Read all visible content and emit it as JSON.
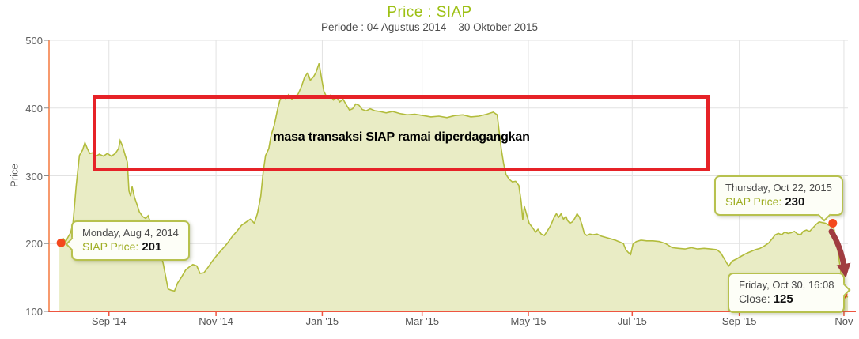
{
  "page": {
    "title": "Price : SIAP",
    "subtitle": "Periode : 04 Agustus 2014 – 30 Oktober 2015"
  },
  "colors": {
    "title": "#9dc014",
    "subtitle": "#4d4d4d",
    "axis_text": "#606060",
    "grid": "#e2e2e2",
    "y_axis_line": "#f79a6e",
    "x_axis_line": "#ee5540",
    "y_tick": "#8a8a8a",
    "series_line": "#b2bc3c",
    "series_fill": "#e9ecc5",
    "marker": "#f4481d",
    "annotation_box": "#e62227",
    "arrow": "#a03c40",
    "tooltip_border": "#b7c14e",
    "tooltip_bg": "#fdfef7",
    "tooltip_label_olive": "#9fae24"
  },
  "annotation": {
    "text": "masa transaksi SIAP ramai diperdagangkan"
  },
  "tooltips": {
    "aug4": {
      "date": "Monday, Aug 4, 2014",
      "label": "SIAP Price:",
      "value": "201"
    },
    "oct22": {
      "date": "Thursday, Oct 22, 2015",
      "label": "SIAP Price:",
      "value": "230"
    },
    "oct30": {
      "date": "Friday, Oct 30, 16:08",
      "label": "Close:",
      "value": "125"
    }
  },
  "chart_data": {
    "type": "area",
    "title": "Price : SIAP",
    "subtitle": "Periode : 04 Agustus 2014 – 30 Oktober 2015",
    "ylabel": "Price",
    "xlabel": "",
    "ylim": [
      100,
      500
    ],
    "y_ticks": [
      100,
      200,
      300,
      400,
      500
    ],
    "grid": true,
    "legend": "none",
    "x_range": [
      "2014-08-04",
      "2015-10-30"
    ],
    "x_ticks": [
      {
        "label": "Sep '14",
        "f": 0.075
      },
      {
        "label": "Nov '14",
        "f": 0.209
      },
      {
        "label": "Jan '15",
        "f": 0.342
      },
      {
        "label": "Mar '15",
        "f": 0.467
      },
      {
        "label": "May '15",
        "f": 0.6
      },
      {
        "label": "Jul '15",
        "f": 0.73
      },
      {
        "label": "Sep '15",
        "f": 0.864
      },
      {
        "label": "Nov",
        "f": 0.995
      }
    ],
    "marked_points": [
      {
        "f": 0.015,
        "value": 201,
        "tooltip": "aug4"
      },
      {
        "f": 0.981,
        "value": 230,
        "tooltip": "oct22"
      },
      {
        "f": 0.994,
        "value": 125,
        "tooltip": "oct30"
      }
    ],
    "series": [
      {
        "name": "SIAP Price",
        "points": [
          [
            0.013,
            204
          ],
          [
            0.015,
            201
          ],
          [
            0.018,
            207
          ],
          [
            0.021,
            203
          ],
          [
            0.024,
            210
          ],
          [
            0.027,
            216
          ],
          [
            0.03,
            230
          ],
          [
            0.034,
            285
          ],
          [
            0.038,
            330
          ],
          [
            0.042,
            338
          ],
          [
            0.045,
            349
          ],
          [
            0.048,
            340
          ],
          [
            0.051,
            333
          ],
          [
            0.055,
            334
          ],
          [
            0.059,
            329
          ],
          [
            0.063,
            332
          ],
          [
            0.068,
            329
          ],
          [
            0.073,
            333
          ],
          [
            0.078,
            329
          ],
          [
            0.083,
            333
          ],
          [
            0.087,
            340
          ],
          [
            0.089,
            352
          ],
          [
            0.092,
            344
          ],
          [
            0.095,
            332
          ],
          [
            0.098,
            320
          ],
          [
            0.1,
            278
          ],
          [
            0.102,
            270
          ],
          [
            0.104,
            284
          ],
          [
            0.107,
            268
          ],
          [
            0.11,
            258
          ],
          [
            0.113,
            247
          ],
          [
            0.117,
            240
          ],
          [
            0.121,
            237
          ],
          [
            0.124,
            241
          ],
          [
            0.127,
            231
          ],
          [
            0.131,
            218
          ],
          [
            0.135,
            205
          ],
          [
            0.139,
            190
          ],
          [
            0.143,
            170
          ],
          [
            0.147,
            145
          ],
          [
            0.149,
            133
          ],
          [
            0.153,
            131
          ],
          [
            0.157,
            130
          ],
          [
            0.161,
            142
          ],
          [
            0.166,
            151
          ],
          [
            0.171,
            161
          ],
          [
            0.176,
            166
          ],
          [
            0.18,
            169
          ],
          [
            0.185,
            167
          ],
          [
            0.189,
            156
          ],
          [
            0.194,
            157
          ],
          [
            0.199,
            165
          ],
          [
            0.205,
            175
          ],
          [
            0.211,
            184
          ],
          [
            0.217,
            192
          ],
          [
            0.223,
            200
          ],
          [
            0.229,
            210
          ],
          [
            0.235,
            218
          ],
          [
            0.241,
            227
          ],
          [
            0.247,
            232
          ],
          [
            0.252,
            236
          ],
          [
            0.257,
            230
          ],
          [
            0.261,
            245
          ],
          [
            0.265,
            270
          ],
          [
            0.268,
            305
          ],
          [
            0.271,
            330
          ],
          [
            0.275,
            340
          ],
          [
            0.278,
            360
          ],
          [
            0.282,
            375
          ],
          [
            0.286,
            398
          ],
          [
            0.289,
            412
          ],
          [
            0.292,
            418
          ],
          [
            0.296,
            414
          ],
          [
            0.3,
            420
          ],
          [
            0.304,
            413
          ],
          [
            0.308,
            417
          ],
          [
            0.312,
            421
          ],
          [
            0.316,
            432
          ],
          [
            0.32,
            446
          ],
          [
            0.324,
            452
          ],
          [
            0.327,
            441
          ],
          [
            0.331,
            446
          ],
          [
            0.334,
            452
          ],
          [
            0.338,
            466
          ],
          [
            0.341,
            445
          ],
          [
            0.344,
            425
          ],
          [
            0.348,
            415
          ],
          [
            0.352,
            419
          ],
          [
            0.356,
            412
          ],
          [
            0.36,
            416
          ],
          [
            0.364,
            409
          ],
          [
            0.368,
            413
          ],
          [
            0.372,
            405
          ],
          [
            0.376,
            397
          ],
          [
            0.38,
            399
          ],
          [
            0.384,
            406
          ],
          [
            0.388,
            404
          ],
          [
            0.392,
            398
          ],
          [
            0.397,
            396
          ],
          [
            0.402,
            399
          ],
          [
            0.408,
            396
          ],
          [
            0.414,
            395
          ],
          [
            0.422,
            393
          ],
          [
            0.43,
            395
          ],
          [
            0.439,
            392
          ],
          [
            0.448,
            390
          ],
          [
            0.458,
            391
          ],
          [
            0.468,
            389
          ],
          [
            0.478,
            387
          ],
          [
            0.488,
            388
          ],
          [
            0.498,
            386
          ],
          [
            0.508,
            389
          ],
          [
            0.518,
            390
          ],
          [
            0.528,
            387
          ],
          [
            0.538,
            388
          ],
          [
            0.548,
            391
          ],
          [
            0.556,
            394
          ],
          [
            0.561,
            390
          ],
          [
            0.563,
            370
          ],
          [
            0.566,
            340
          ],
          [
            0.569,
            318
          ],
          [
            0.572,
            302
          ],
          [
            0.576,
            295
          ],
          [
            0.58,
            291
          ],
          [
            0.584,
            292
          ],
          [
            0.588,
            286
          ],
          [
            0.591,
            262
          ],
          [
            0.593,
            235
          ],
          [
            0.595,
            255
          ],
          [
            0.598,
            242
          ],
          [
            0.601,
            230
          ],
          [
            0.605,
            224
          ],
          [
            0.609,
            217
          ],
          [
            0.612,
            221
          ],
          [
            0.616,
            214
          ],
          [
            0.62,
            212
          ],
          [
            0.624,
            219
          ],
          [
            0.628,
            227
          ],
          [
            0.632,
            238
          ],
          [
            0.635,
            244
          ],
          [
            0.638,
            239
          ],
          [
            0.641,
            244
          ],
          [
            0.644,
            236
          ],
          [
            0.647,
            240
          ],
          [
            0.649,
            234
          ],
          [
            0.652,
            230
          ],
          [
            0.655,
            232
          ],
          [
            0.658,
            237
          ],
          [
            0.661,
            244
          ],
          [
            0.664,
            239
          ],
          [
            0.667,
            228
          ],
          [
            0.67,
            215
          ],
          [
            0.673,
            212
          ],
          [
            0.677,
            214
          ],
          [
            0.681,
            213
          ],
          [
            0.686,
            214
          ],
          [
            0.691,
            211
          ],
          [
            0.697,
            209
          ],
          [
            0.703,
            207
          ],
          [
            0.709,
            205
          ],
          [
            0.715,
            202
          ],
          [
            0.719,
            200
          ],
          [
            0.722,
            191
          ],
          [
            0.725,
            187
          ],
          [
            0.728,
            184
          ],
          [
            0.731,
            199
          ],
          [
            0.735,
            203
          ],
          [
            0.741,
            205
          ],
          [
            0.748,
            204
          ],
          [
            0.756,
            204
          ],
          [
            0.764,
            203
          ],
          [
            0.772,
            200
          ],
          [
            0.78,
            194
          ],
          [
            0.788,
            193
          ],
          [
            0.796,
            192
          ],
          [
            0.804,
            194
          ],
          [
            0.812,
            192
          ],
          [
            0.82,
            193
          ],
          [
            0.828,
            192
          ],
          [
            0.836,
            191
          ],
          [
            0.841,
            186
          ],
          [
            0.845,
            178
          ],
          [
            0.849,
            170
          ],
          [
            0.851,
            167
          ],
          [
            0.855,
            174
          ],
          [
            0.86,
            177
          ],
          [
            0.866,
            181
          ],
          [
            0.872,
            185
          ],
          [
            0.878,
            188
          ],
          [
            0.884,
            191
          ],
          [
            0.89,
            193
          ],
          [
            0.896,
            197
          ],
          [
            0.901,
            201
          ],
          [
            0.905,
            207
          ],
          [
            0.909,
            213
          ],
          [
            0.913,
            215
          ],
          [
            0.917,
            213
          ],
          [
            0.921,
            217
          ],
          [
            0.925,
            215
          ],
          [
            0.929,
            216
          ],
          [
            0.933,
            218
          ],
          [
            0.937,
            214
          ],
          [
            0.941,
            213
          ],
          [
            0.944,
            218
          ],
          [
            0.948,
            220
          ],
          [
            0.952,
            218
          ],
          [
            0.956,
            223
          ],
          [
            0.96,
            228
          ],
          [
            0.964,
            232
          ],
          [
            0.968,
            231
          ],
          [
            0.972,
            230
          ],
          [
            0.976,
            227
          ],
          [
            0.981,
            230
          ],
          [
            0.985,
            208
          ],
          [
            0.988,
            185
          ],
          [
            0.991,
            158
          ],
          [
            0.994,
            125
          ],
          [
            0.997,
            122
          ],
          [
            1.0,
            121
          ]
        ]
      }
    ]
  }
}
